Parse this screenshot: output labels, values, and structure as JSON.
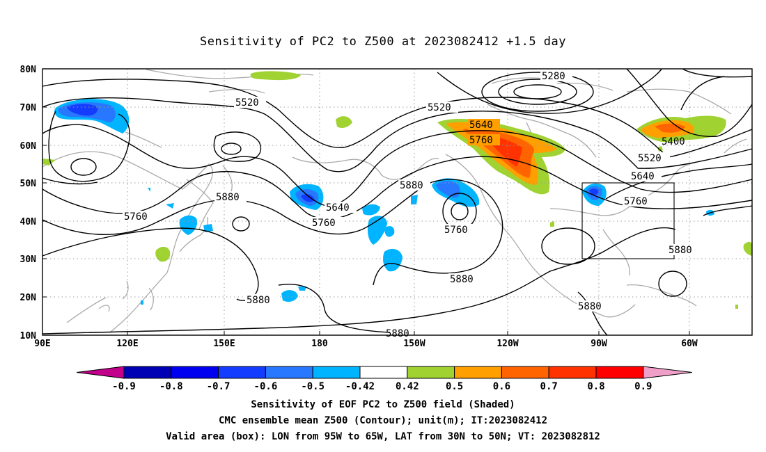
{
  "title": "Sensitivity of PC2 to Z500 at 2023082412 +1.5 day",
  "lat_labels": [
    "80N",
    "70N",
    "60N",
    "50N",
    "40N",
    "30N",
    "20N",
    "10N"
  ],
  "lon_labels": [
    "90E",
    "120E",
    "150E",
    "180",
    "150W",
    "120W",
    "90W",
    "60W"
  ],
  "contour_labels": {
    "c5520a": "5520",
    "c5520b": "5520",
    "c5520c": "5520",
    "c5280": "5280",
    "c5400": "5400",
    "c5640a": "5640",
    "c5640b": "5640",
    "c5640c": "5640",
    "c5760a": "5760",
    "c5760b": "5760",
    "c5760c": "5760",
    "c5760d": "5760",
    "c5760e": "5760",
    "c5880a": "5880",
    "c5880b": "5880",
    "c5880c": "5880",
    "c5880d": "5880",
    "c5880e": "5880",
    "c5880f": "5880"
  },
  "colorbar": {
    "labels": [
      "-0.9",
      "-0.8",
      "-0.7",
      "-0.6",
      "-0.5",
      "-0.42",
      "0.42",
      "0.5",
      "0.6",
      "0.7",
      "0.8",
      "0.9"
    ],
    "colors": [
      "#c3008c",
      "#0000b4",
      "#0000f0",
      "#143cff",
      "#2878ff",
      "#00b4ff",
      "#ffffff",
      "#a0d232",
      "#ffa000",
      "#ff6400",
      "#ff3200",
      "#ff0000",
      "#f0a0c8"
    ]
  },
  "footer": {
    "line1": "Sensitivity of EOF PC2 to Z500 field (Shaded)",
    "line2": "CMC ensemble mean Z500 (Contour); unit(m); IT:2023082412",
    "line3": "Valid area (box): LON from 95W to 65W, LAT from 30N to 50N; VT: 2023082812"
  },
  "valid_box": {
    "lon_min": -95,
    "lon_max": -65,
    "lat_min": 30,
    "lat_max": 50
  }
}
